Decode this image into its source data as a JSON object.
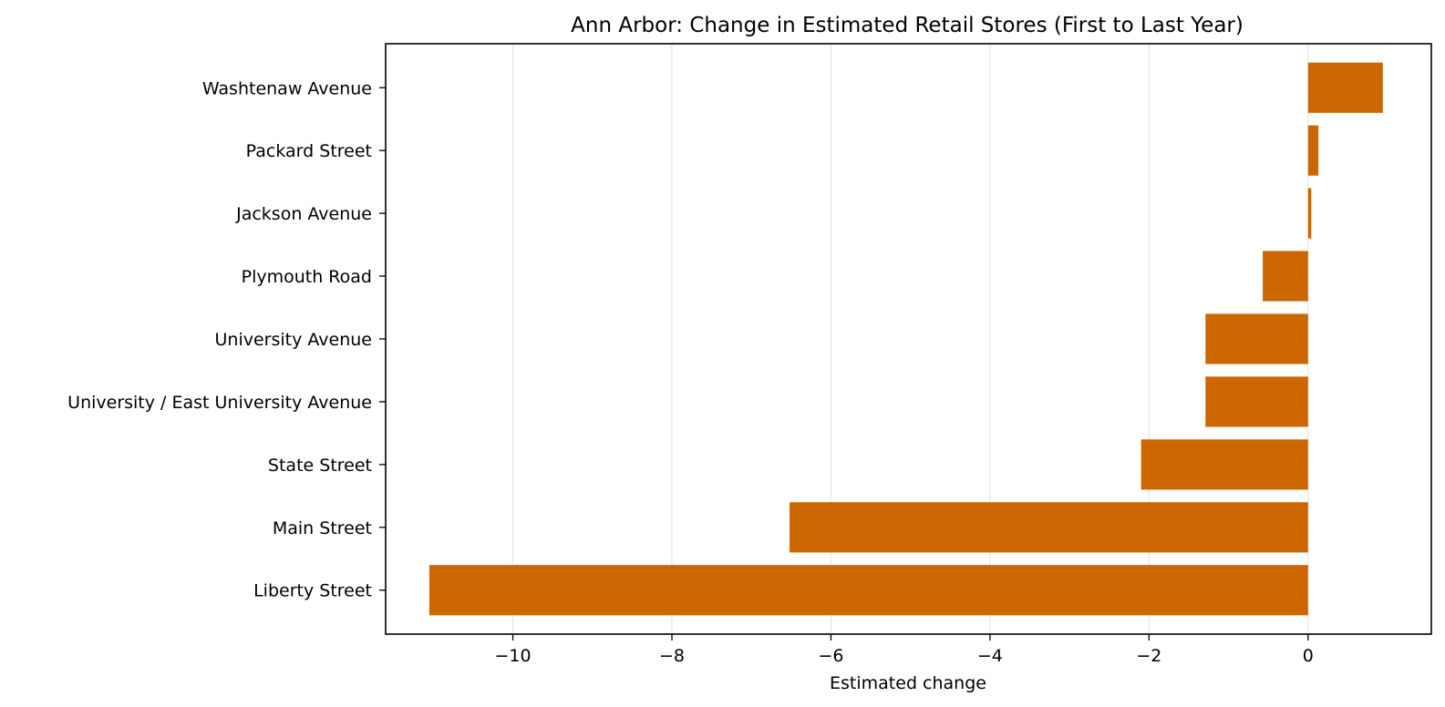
{
  "chart_data": {
    "type": "bar",
    "orientation": "horizontal",
    "title": "Ann Arbor: Change in Estimated Retail Stores (First to Last Year)",
    "xlabel": "Estimated change",
    "ylabel": "",
    "categories": [
      "Liberty Street",
      "Main Street",
      "State Street",
      "University / East University Avenue",
      "University Avenue",
      "Plymouth Road",
      "Jackson Avenue",
      "Packard Street",
      "Washtenaw Avenue"
    ],
    "values": [
      -11.05,
      -6.52,
      -2.1,
      -1.29,
      -1.29,
      -0.57,
      0.04,
      0.13,
      0.94
    ],
    "xlim": [
      -11.6,
      1.55
    ],
    "xticks": [
      -10,
      -8,
      -6,
      -4,
      -2,
      0
    ],
    "xtick_labels": [
      "−10",
      "−8",
      "−6",
      "−4",
      "−2",
      "0"
    ],
    "grid": "x",
    "bar_color": "#cc6600",
    "grid_color": "#e6e6e6"
  }
}
